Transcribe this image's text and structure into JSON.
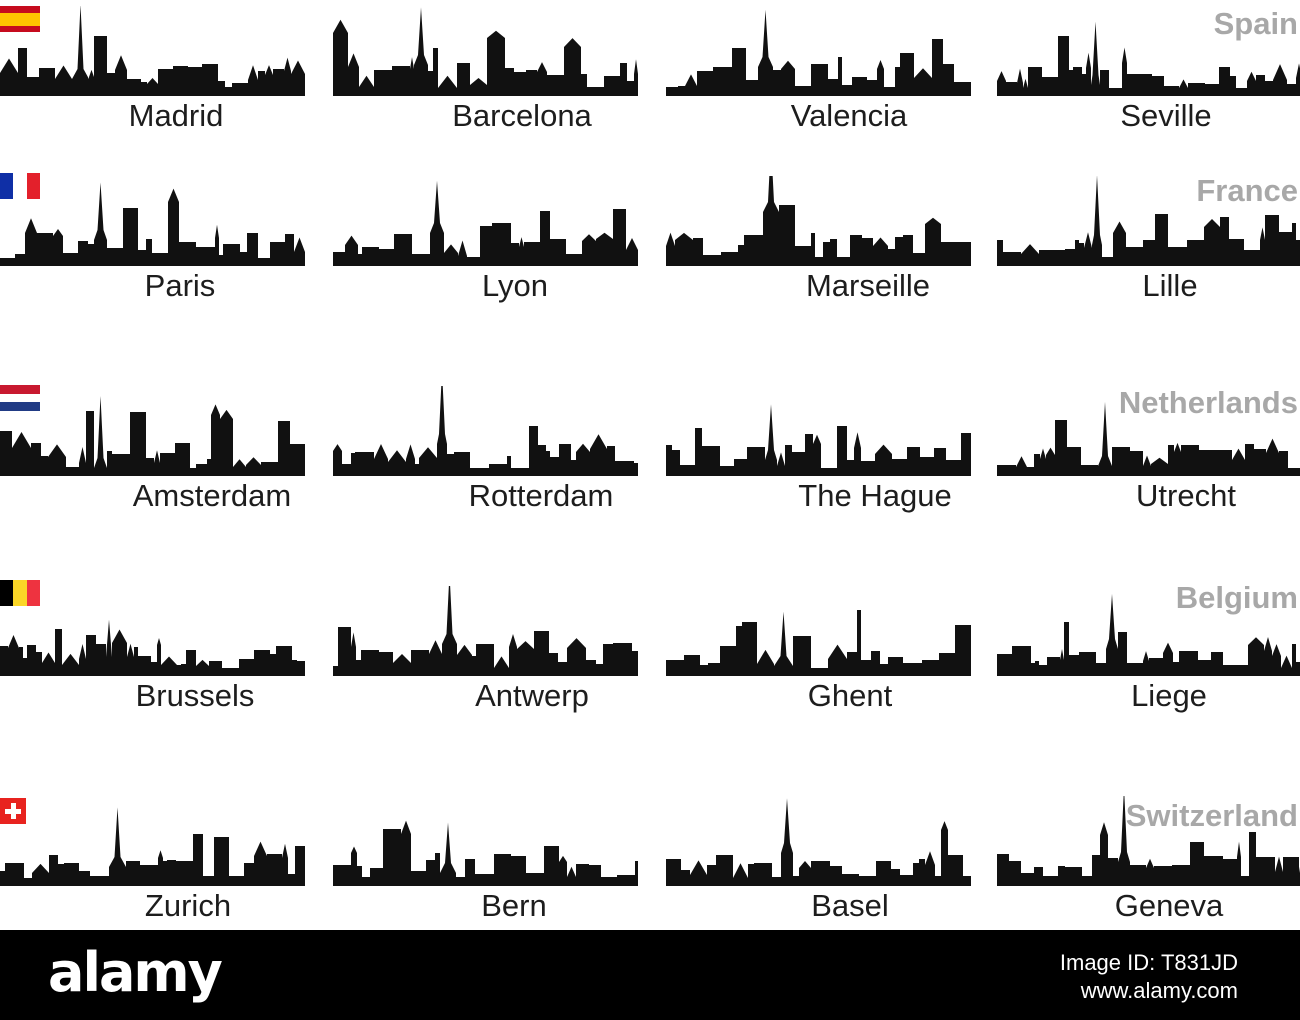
{
  "groups": [
    {
      "country": "Spain",
      "flag": {
        "name": "spain-flag-icon",
        "orientation": "horizontal",
        "colors": [
          "#c60b1e",
          "#ffc400",
          "#c60b1e"
        ],
        "weights": [
          1,
          2,
          1
        ]
      },
      "cities": [
        "Madrid",
        "Barcelona",
        "Valencia",
        "Seville"
      ]
    },
    {
      "country": "France",
      "flag": {
        "name": "france-flag-icon",
        "orientation": "vertical",
        "colors": [
          "#0f2fa6",
          "#ffffff",
          "#e3202b"
        ],
        "weights": [
          1,
          1,
          1
        ]
      },
      "cities": [
        "Paris",
        "Lyon",
        "Marseille",
        "Lille"
      ]
    },
    {
      "country": "Netherlands",
      "flag": {
        "name": "netherlands-flag-icon",
        "orientation": "horizontal",
        "colors": [
          "#c8192f",
          "#ffffff",
          "#213b85"
        ],
        "weights": [
          1,
          1,
          1
        ]
      },
      "cities": [
        "Amsterdam",
        "Rotterdam",
        "The Hague",
        "Utrecht"
      ]
    },
    {
      "country": "Belgium",
      "flag": {
        "name": "belgium-flag-icon",
        "orientation": "vertical",
        "colors": [
          "#000000",
          "#fbd627",
          "#ee3340"
        ],
        "weights": [
          1,
          1,
          1
        ]
      },
      "cities": [
        "Brussels",
        "Antwerp",
        "Ghent",
        "Liege"
      ]
    },
    {
      "country": "Switzerland",
      "flag": {
        "name": "switzerland-flag-icon",
        "orientation": "cross",
        "colors": [
          "#e8231f",
          "#ffffff"
        ],
        "weights": [
          1
        ]
      },
      "cities": [
        "Zurich",
        "Bern",
        "Basel",
        "Geneva"
      ]
    }
  ],
  "footer": {
    "logo": "alamy",
    "image_id": "Image ID: T831JD",
    "site": "www.alamy.com",
    "colors": {
      "background": "#000000",
      "text": "#ffffff"
    }
  },
  "colors": {
    "country_label": "#a8a8a8",
    "city_label": "#1d1d1d",
    "silhouette": "#111111"
  }
}
